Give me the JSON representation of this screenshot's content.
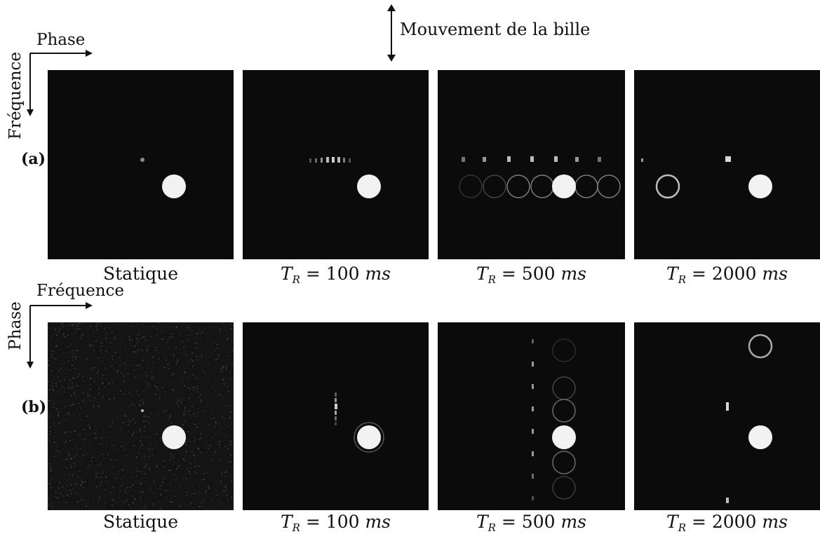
{
  "header": {
    "movement_label": "Mouvement de la bille"
  },
  "row_a": {
    "label": "(a)",
    "axis_horizontal": "Phase",
    "axis_vertical": "Fréquence",
    "captions": [
      {
        "kind": "static",
        "text": "Statique"
      },
      {
        "kind": "tr",
        "symbol": "T",
        "subscript": "R",
        "eq": " = ",
        "value": "100",
        "unit": "ms"
      },
      {
        "kind": "tr",
        "symbol": "T",
        "subscript": "R",
        "eq": " = ",
        "value": "500",
        "unit": "ms"
      },
      {
        "kind": "tr",
        "symbol": "T",
        "subscript": "R",
        "eq": " = ",
        "value": "2000",
        "unit": "ms"
      }
    ]
  },
  "row_b": {
    "label": "(b)",
    "axis_horizontal": "Fréquence",
    "axis_vertical": "Phase",
    "captions": [
      {
        "kind": "static",
        "text": "Statique"
      },
      {
        "kind": "tr",
        "symbol": "T",
        "subscript": "R",
        "eq": " = ",
        "value": "100",
        "unit": "ms"
      },
      {
        "kind": "tr",
        "symbol": "T",
        "subscript": "R",
        "eq": " = ",
        "value": "500",
        "unit": "ms"
      },
      {
        "kind": "tr",
        "symbol": "T",
        "subscript": "R",
        "eq": " = ",
        "value": "2000",
        "unit": "ms"
      }
    ]
  }
}
